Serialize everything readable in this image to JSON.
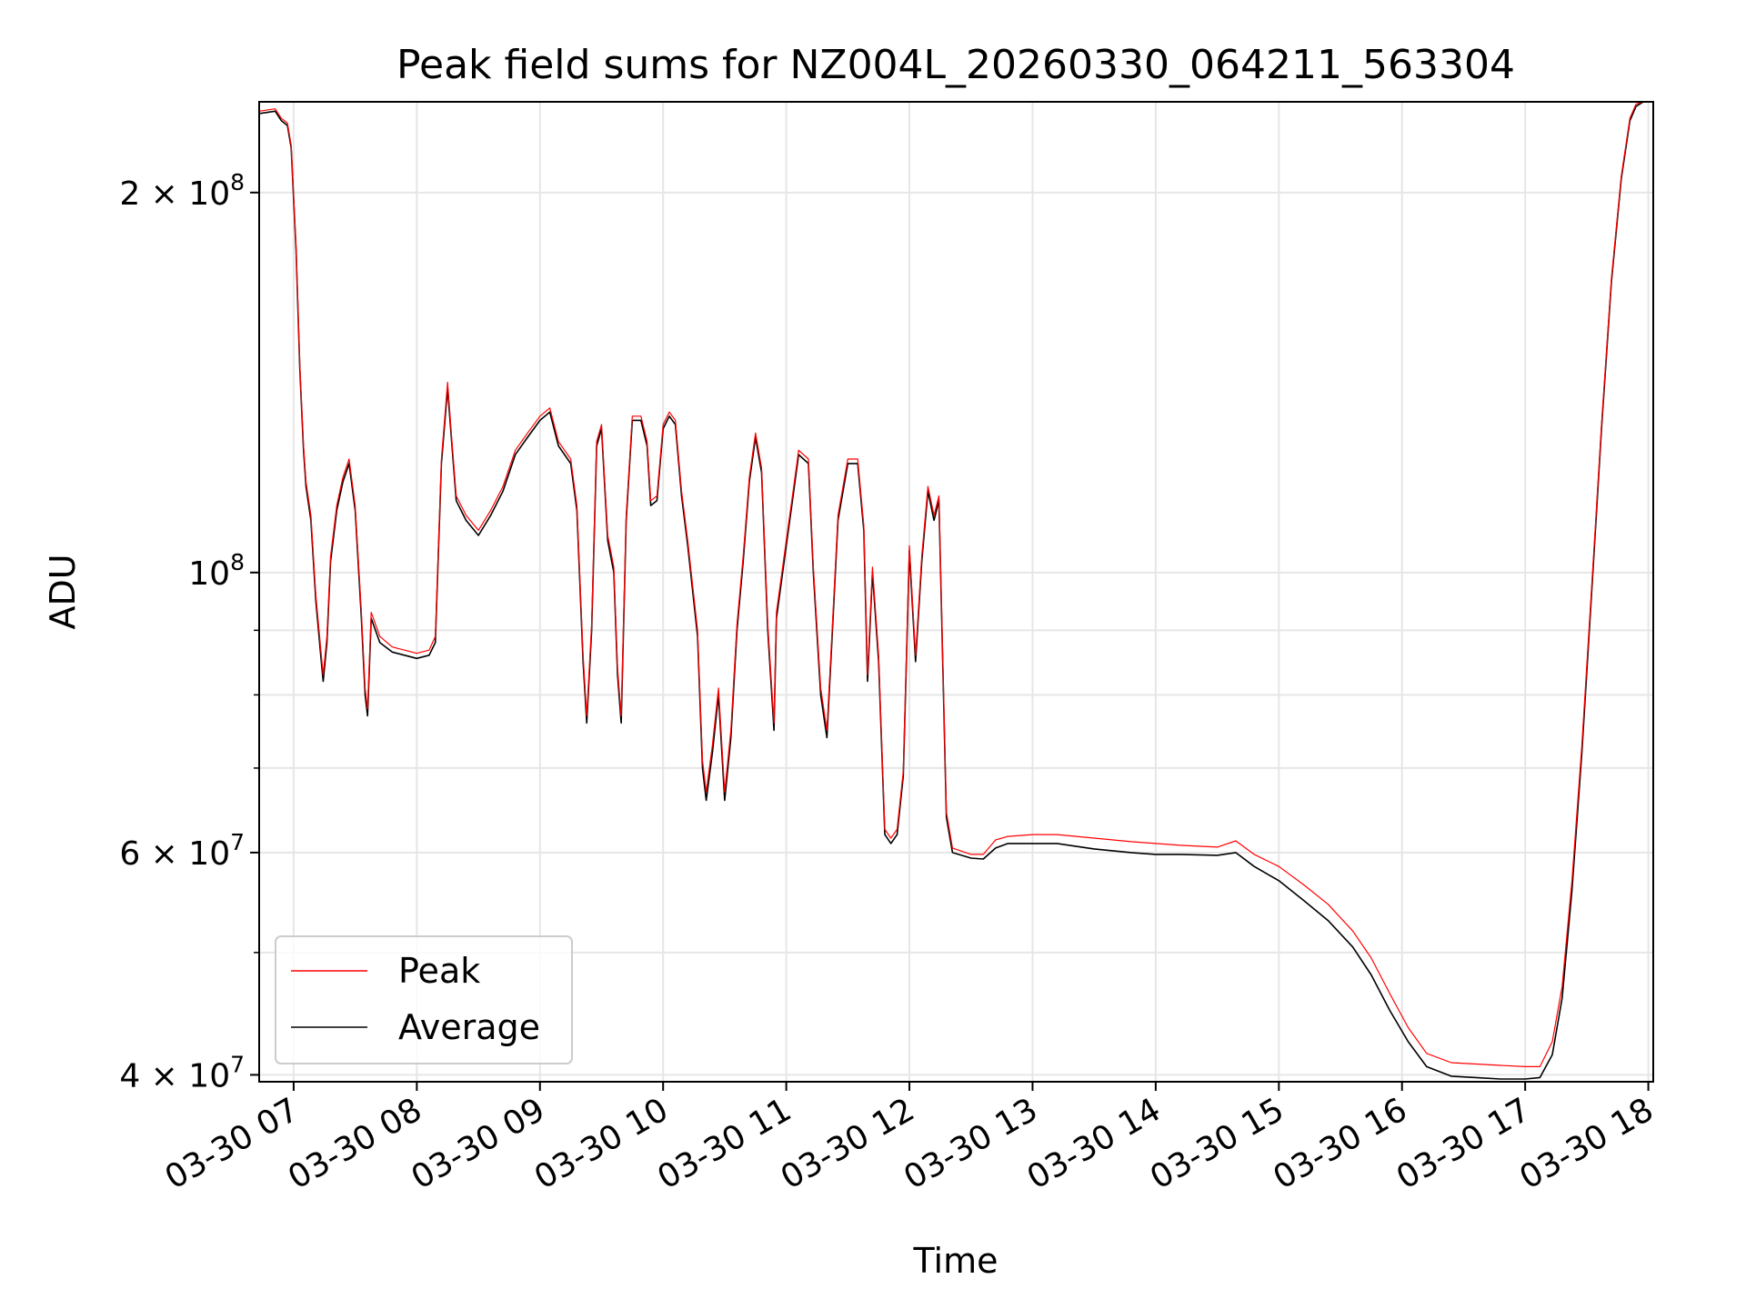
{
  "chart_data": {
    "type": "line",
    "title": "Peak field sums for NZ004L_20260330_064211_563304",
    "xlabel": "Time",
    "ylabel": "ADU",
    "yscale": "log",
    "ylim": [
      39500000,
      236000000
    ],
    "xlim_hours": [
      6.72,
      18.04
    ],
    "grid": true,
    "legend_position": "lower-left",
    "x_ticks": [
      {
        "hour": 7,
        "label": "03-30 07"
      },
      {
        "hour": 8,
        "label": "03-30 08"
      },
      {
        "hour": 9,
        "label": "03-30 09"
      },
      {
        "hour": 10,
        "label": "03-30 10"
      },
      {
        "hour": 11,
        "label": "03-30 11"
      },
      {
        "hour": 12,
        "label": "03-30 12"
      },
      {
        "hour": 13,
        "label": "03-30 13"
      },
      {
        "hour": 14,
        "label": "03-30 14"
      },
      {
        "hour": 15,
        "label": "03-30 15"
      },
      {
        "hour": 16,
        "label": "03-30 16"
      },
      {
        "hour": 17,
        "label": "03-30 17"
      },
      {
        "hour": 18,
        "label": "03-30 18"
      }
    ],
    "y_ticks_major": [
      {
        "value": 40000000,
        "mantissa": "4",
        "exponent": "7"
      },
      {
        "value": 60000000,
        "mantissa": "6",
        "exponent": "7"
      },
      {
        "value": 100000000,
        "mantissa": "",
        "exponent": "8"
      },
      {
        "value": 200000000,
        "mantissa": "2",
        "exponent": "8"
      }
    ],
    "y_ticks_minor": [
      50000000,
      70000000,
      80000000,
      90000000
    ],
    "series": [
      {
        "name": "Average",
        "color": "#000000",
        "points": [
          [
            6.72,
            231
          ],
          [
            6.85,
            232
          ],
          [
            6.9,
            228
          ],
          [
            6.95,
            226
          ],
          [
            6.98,
            217
          ],
          [
            7.02,
            180
          ],
          [
            7.05,
            145
          ],
          [
            7.08,
            125
          ],
          [
            7.1,
            117
          ],
          [
            7.14,
            110
          ],
          [
            7.18,
            95
          ],
          [
            7.22,
            86
          ],
          [
            7.24,
            82
          ],
          [
            7.27,
            88
          ],
          [
            7.3,
            102
          ],
          [
            7.35,
            112
          ],
          [
            7.4,
            118
          ],
          [
            7.45,
            122
          ],
          [
            7.5,
            112
          ],
          [
            7.55,
            92
          ],
          [
            7.58,
            80
          ],
          [
            7.6,
            77
          ],
          [
            7.63,
            92
          ],
          [
            7.7,
            88
          ],
          [
            7.8,
            86.5
          ],
          [
            7.9,
            86
          ],
          [
            8.0,
            85.5
          ],
          [
            8.1,
            86
          ],
          [
            8.15,
            88
          ],
          [
            8.2,
            122
          ],
          [
            8.25,
            140
          ],
          [
            8.28,
            128
          ],
          [
            8.32,
            114
          ],
          [
            8.4,
            110
          ],
          [
            8.5,
            107
          ],
          [
            8.6,
            111
          ],
          [
            8.7,
            116
          ],
          [
            8.8,
            124
          ],
          [
            8.9,
            128
          ],
          [
            9.0,
            132
          ],
          [
            9.08,
            134
          ],
          [
            9.15,
            126
          ],
          [
            9.25,
            122
          ],
          [
            9.3,
            112
          ],
          [
            9.35,
            85
          ],
          [
            9.38,
            76
          ],
          [
            9.42,
            90
          ],
          [
            9.46,
            126
          ],
          [
            9.5,
            130
          ],
          [
            9.55,
            106
          ],
          [
            9.6,
            100
          ],
          [
            9.63,
            83
          ],
          [
            9.66,
            76
          ],
          [
            9.7,
            110
          ],
          [
            9.75,
            132
          ],
          [
            9.82,
            132
          ],
          [
            9.87,
            126
          ],
          [
            9.9,
            113
          ],
          [
            9.95,
            114
          ],
          [
            10.0,
            130
          ],
          [
            10.05,
            133
          ],
          [
            10.1,
            131
          ],
          [
            10.15,
            115
          ],
          [
            10.2,
            105
          ],
          [
            10.28,
            89
          ],
          [
            10.32,
            70
          ],
          [
            10.35,
            66
          ],
          [
            10.4,
            72
          ],
          [
            10.45,
            80
          ],
          [
            10.5,
            66
          ],
          [
            10.55,
            74
          ],
          [
            10.6,
            90
          ],
          [
            10.65,
            102
          ],
          [
            10.7,
            118
          ],
          [
            10.75,
            128
          ],
          [
            10.8,
            120
          ],
          [
            10.85,
            90
          ],
          [
            10.9,
            75
          ],
          [
            10.92,
            92
          ],
          [
            11.0,
            105
          ],
          [
            11.05,
            114
          ],
          [
            11.1,
            124
          ],
          [
            11.18,
            122
          ],
          [
            11.22,
            100
          ],
          [
            11.28,
            80
          ],
          [
            11.33,
            74
          ],
          [
            11.37,
            88
          ],
          [
            11.42,
            110
          ],
          [
            11.5,
            122
          ],
          [
            11.58,
            122
          ],
          [
            11.63,
            108
          ],
          [
            11.66,
            82
          ],
          [
            11.7,
            100
          ],
          [
            11.75,
            85
          ],
          [
            11.8,
            62
          ],
          [
            11.85,
            61
          ],
          [
            11.9,
            62
          ],
          [
            11.95,
            69
          ],
          [
            12.0,
            104
          ],
          [
            12.05,
            85
          ],
          [
            12.1,
            102
          ],
          [
            12.15,
            116
          ],
          [
            12.2,
            110
          ],
          [
            12.24,
            114
          ],
          [
            12.3,
            64
          ],
          [
            12.35,
            60
          ],
          [
            12.5,
            59.4
          ],
          [
            12.6,
            59.3
          ],
          [
            12.7,
            60.5
          ],
          [
            12.8,
            61
          ],
          [
            13.0,
            61
          ],
          [
            13.2,
            61
          ],
          [
            13.5,
            60.4
          ],
          [
            13.8,
            60
          ],
          [
            14.0,
            59.8
          ],
          [
            14.2,
            59.8
          ],
          [
            14.5,
            59.7
          ],
          [
            14.65,
            60
          ],
          [
            14.8,
            58.5
          ],
          [
            15.0,
            57
          ],
          [
            15.2,
            55
          ],
          [
            15.4,
            53
          ],
          [
            15.6,
            50.5
          ],
          [
            15.75,
            48
          ],
          [
            15.9,
            45
          ],
          [
            16.05,
            42.5
          ],
          [
            16.2,
            40.6
          ],
          [
            16.4,
            39.9
          ],
          [
            16.6,
            39.8
          ],
          [
            16.8,
            39.7
          ],
          [
            17.0,
            39.7
          ],
          [
            17.12,
            39.8
          ],
          [
            17.22,
            41.5
          ],
          [
            17.3,
            46
          ],
          [
            17.38,
            56
          ],
          [
            17.46,
            72
          ],
          [
            17.55,
            100
          ],
          [
            17.62,
            130
          ],
          [
            17.7,
            170
          ],
          [
            17.78,
            205
          ],
          [
            17.85,
            228
          ],
          [
            17.9,
            234
          ],
          [
            17.96,
            236
          ],
          [
            18.04,
            236
          ]
        ]
      },
      {
        "name": "Peak",
        "color": "#ff0000",
        "points": [
          [
            6.72,
            232
          ],
          [
            6.85,
            233
          ],
          [
            6.9,
            229
          ],
          [
            6.95,
            227
          ],
          [
            6.98,
            218
          ],
          [
            7.02,
            181
          ],
          [
            7.05,
            146
          ],
          [
            7.08,
            126
          ],
          [
            7.1,
            118
          ],
          [
            7.14,
            111
          ],
          [
            7.18,
            96
          ],
          [
            7.22,
            87
          ],
          [
            7.24,
            83
          ],
          [
            7.27,
            89
          ],
          [
            7.3,
            103
          ],
          [
            7.35,
            113
          ],
          [
            7.4,
            119
          ],
          [
            7.45,
            123
          ],
          [
            7.5,
            113
          ],
          [
            7.55,
            93
          ],
          [
            7.58,
            81
          ],
          [
            7.6,
            78
          ],
          [
            7.63,
            93
          ],
          [
            7.7,
            89
          ],
          [
            7.8,
            87.3
          ],
          [
            7.9,
            86.8
          ],
          [
            8.0,
            86.3
          ],
          [
            8.1,
            86.8
          ],
          [
            8.15,
            89
          ],
          [
            8.2,
            123
          ],
          [
            8.25,
            141.5
          ],
          [
            8.28,
            129
          ],
          [
            8.32,
            115
          ],
          [
            8.4,
            111
          ],
          [
            8.5,
            108
          ],
          [
            8.6,
            112
          ],
          [
            8.7,
            117
          ],
          [
            8.8,
            125
          ],
          [
            8.9,
            129
          ],
          [
            9.0,
            133
          ],
          [
            9.08,
            135
          ],
          [
            9.15,
            127
          ],
          [
            9.25,
            123
          ],
          [
            9.3,
            113
          ],
          [
            9.35,
            86
          ],
          [
            9.38,
            77
          ],
          [
            9.42,
            91
          ],
          [
            9.46,
            127
          ],
          [
            9.5,
            131
          ],
          [
            9.55,
            107
          ],
          [
            9.6,
            101
          ],
          [
            9.63,
            84
          ],
          [
            9.66,
            77
          ],
          [
            9.7,
            111
          ],
          [
            9.75,
            133
          ],
          [
            9.82,
            133
          ],
          [
            9.87,
            127
          ],
          [
            9.9,
            114
          ],
          [
            9.95,
            115
          ],
          [
            10.0,
            131
          ],
          [
            10.05,
            134
          ],
          [
            10.1,
            132
          ],
          [
            10.15,
            116
          ],
          [
            10.2,
            106
          ],
          [
            10.28,
            90
          ],
          [
            10.32,
            71
          ],
          [
            10.35,
            67
          ],
          [
            10.4,
            73
          ],
          [
            10.45,
            81
          ],
          [
            10.5,
            67
          ],
          [
            10.55,
            75
          ],
          [
            10.6,
            91
          ],
          [
            10.65,
            103
          ],
          [
            10.7,
            119
          ],
          [
            10.75,
            129
          ],
          [
            10.8,
            121
          ],
          [
            10.85,
            91
          ],
          [
            10.9,
            76
          ],
          [
            10.92,
            93
          ],
          [
            11.0,
            106
          ],
          [
            11.05,
            115
          ],
          [
            11.1,
            125
          ],
          [
            11.18,
            123
          ],
          [
            11.22,
            101
          ],
          [
            11.28,
            81
          ],
          [
            11.33,
            75
          ],
          [
            11.37,
            89
          ],
          [
            11.42,
            111
          ],
          [
            11.5,
            123
          ],
          [
            11.58,
            123
          ],
          [
            11.63,
            109
          ],
          [
            11.66,
            83
          ],
          [
            11.7,
            101
          ],
          [
            11.75,
            86
          ],
          [
            11.8,
            62.6
          ],
          [
            11.85,
            61.6
          ],
          [
            11.9,
            62.6
          ],
          [
            11.95,
            69.6
          ],
          [
            12.0,
            105
          ],
          [
            12.05,
            86
          ],
          [
            12.1,
            103
          ],
          [
            12.15,
            117
          ],
          [
            12.2,
            111
          ],
          [
            12.24,
            115
          ],
          [
            12.3,
            64.6
          ],
          [
            12.35,
            60.5
          ],
          [
            12.5,
            59.8
          ],
          [
            12.6,
            59.8
          ],
          [
            12.7,
            61.4
          ],
          [
            12.8,
            61.8
          ],
          [
            13.0,
            62
          ],
          [
            13.2,
            62
          ],
          [
            13.5,
            61.6
          ],
          [
            13.8,
            61.2
          ],
          [
            14.0,
            61
          ],
          [
            14.2,
            60.8
          ],
          [
            14.5,
            60.6
          ],
          [
            14.65,
            61.3
          ],
          [
            14.8,
            59.8
          ],
          [
            15.0,
            58.5
          ],
          [
            15.2,
            56.6
          ],
          [
            15.4,
            54.6
          ],
          [
            15.6,
            52
          ],
          [
            15.75,
            49.5
          ],
          [
            15.9,
            46.4
          ],
          [
            16.05,
            43.6
          ],
          [
            16.2,
            41.6
          ],
          [
            16.4,
            40.9
          ],
          [
            16.6,
            40.8
          ],
          [
            16.8,
            40.7
          ],
          [
            17.0,
            40.6
          ],
          [
            17.12,
            40.6
          ],
          [
            17.22,
            42.5
          ],
          [
            17.3,
            47
          ],
          [
            17.38,
            57
          ],
          [
            17.46,
            73
          ],
          [
            17.55,
            101
          ],
          [
            17.62,
            131
          ],
          [
            17.7,
            171
          ],
          [
            17.78,
            206
          ],
          [
            17.85,
            229
          ],
          [
            17.9,
            235
          ],
          [
            17.96,
            236
          ],
          [
            18.04,
            236
          ]
        ]
      }
    ],
    "legend": [
      {
        "name": "Peak",
        "color": "#ff0000"
      },
      {
        "name": "Average",
        "color": "#000000"
      }
    ],
    "value_unit_note": "points are [hour of day, value in millions of ADU]",
    "times_sep": "×",
    "base": "10"
  }
}
